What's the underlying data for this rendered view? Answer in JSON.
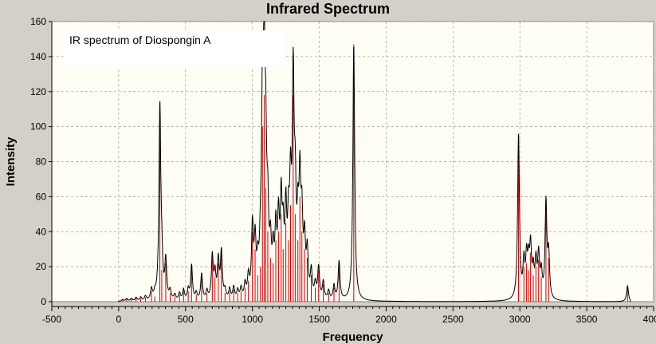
{
  "window": {
    "title": "Infrared Spectrum"
  },
  "colors": {
    "plot_bg": "#fffef4",
    "spectrum": "#000000",
    "sticks": "#cc0000",
    "frame": "#d4d0c8"
  },
  "chart_data": {
    "type": "line",
    "title": "Infrared Spectrum",
    "annotation": "IR spectrum of Diospongin A",
    "xlabel": "Frequency",
    "ylabel": "Intensity",
    "xlim": [
      -500,
      4000
    ],
    "ylim": [
      0,
      160
    ],
    "xticks": [
      -500,
      0,
      500,
      1000,
      1500,
      2000,
      2500,
      3000,
      3500,
      4000
    ],
    "yticks": [
      0,
      20,
      40,
      60,
      80,
      100,
      120,
      140,
      160
    ],
    "grid": true,
    "sticks": [
      {
        "x": 30,
        "y": 1
      },
      {
        "x": 60,
        "y": 1.5
      },
      {
        "x": 95,
        "y": 1.5
      },
      {
        "x": 130,
        "y": 2
      },
      {
        "x": 165,
        "y": 2
      },
      {
        "x": 200,
        "y": 2.5
      },
      {
        "x": 245,
        "y": 6
      },
      {
        "x": 270,
        "y": 3
      },
      {
        "x": 308,
        "y": 110
      },
      {
        "x": 322,
        "y": 18
      },
      {
        "x": 352,
        "y": 22
      },
      {
        "x": 385,
        "y": 5
      },
      {
        "x": 420,
        "y": 3
      },
      {
        "x": 455,
        "y": 4
      },
      {
        "x": 485,
        "y": 6
      },
      {
        "x": 520,
        "y": 6
      },
      {
        "x": 545,
        "y": 20
      },
      {
        "x": 580,
        "y": 4
      },
      {
        "x": 620,
        "y": 15
      },
      {
        "x": 660,
        "y": 5
      },
      {
        "x": 700,
        "y": 25
      },
      {
        "x": 720,
        "y": 14
      },
      {
        "x": 745,
        "y": 22
      },
      {
        "x": 768,
        "y": 27
      },
      {
        "x": 795,
        "y": 5
      },
      {
        "x": 830,
        "y": 6
      },
      {
        "x": 860,
        "y": 7
      },
      {
        "x": 890,
        "y": 5
      },
      {
        "x": 915,
        "y": 6
      },
      {
        "x": 945,
        "y": 8
      },
      {
        "x": 970,
        "y": 12
      },
      {
        "x": 1000,
        "y": 40
      },
      {
        "x": 1020,
        "y": 30
      },
      {
        "x": 1040,
        "y": 15
      },
      {
        "x": 1060,
        "y": 20
      },
      {
        "x": 1075,
        "y": 100
      },
      {
        "x": 1088,
        "y": 118
      },
      {
        "x": 1100,
        "y": 65
      },
      {
        "x": 1115,
        "y": 40
      },
      {
        "x": 1135,
        "y": 25
      },
      {
        "x": 1155,
        "y": 22
      },
      {
        "x": 1175,
        "y": 35
      },
      {
        "x": 1195,
        "y": 40
      },
      {
        "x": 1215,
        "y": 50
      },
      {
        "x": 1230,
        "y": 30
      },
      {
        "x": 1250,
        "y": 45
      },
      {
        "x": 1270,
        "y": 35
      },
      {
        "x": 1285,
        "y": 55
      },
      {
        "x": 1305,
        "y": 118
      },
      {
        "x": 1320,
        "y": 50
      },
      {
        "x": 1340,
        "y": 35
      },
      {
        "x": 1355,
        "y": 60
      },
      {
        "x": 1370,
        "y": 40
      },
      {
        "x": 1390,
        "y": 30
      },
      {
        "x": 1410,
        "y": 25
      },
      {
        "x": 1440,
        "y": 15
      },
      {
        "x": 1470,
        "y": 8
      },
      {
        "x": 1495,
        "y": 18
      },
      {
        "x": 1530,
        "y": 10
      },
      {
        "x": 1570,
        "y": 5
      },
      {
        "x": 1610,
        "y": 8
      },
      {
        "x": 1648,
        "y": 22
      },
      {
        "x": 1758,
        "y": 147
      },
      {
        "x": 2990,
        "y": 95
      },
      {
        "x": 3030,
        "y": 20
      },
      {
        "x": 3050,
        "y": 22
      },
      {
        "x": 3065,
        "y": 18
      },
      {
        "x": 3080,
        "y": 28
      },
      {
        "x": 3100,
        "y": 15
      },
      {
        "x": 3120,
        "y": 20
      },
      {
        "x": 3140,
        "y": 24
      },
      {
        "x": 3160,
        "y": 14
      },
      {
        "x": 3195,
        "y": 55
      },
      {
        "x": 3215,
        "y": 25
      },
      {
        "x": 3805,
        "y": 9
      }
    ]
  }
}
